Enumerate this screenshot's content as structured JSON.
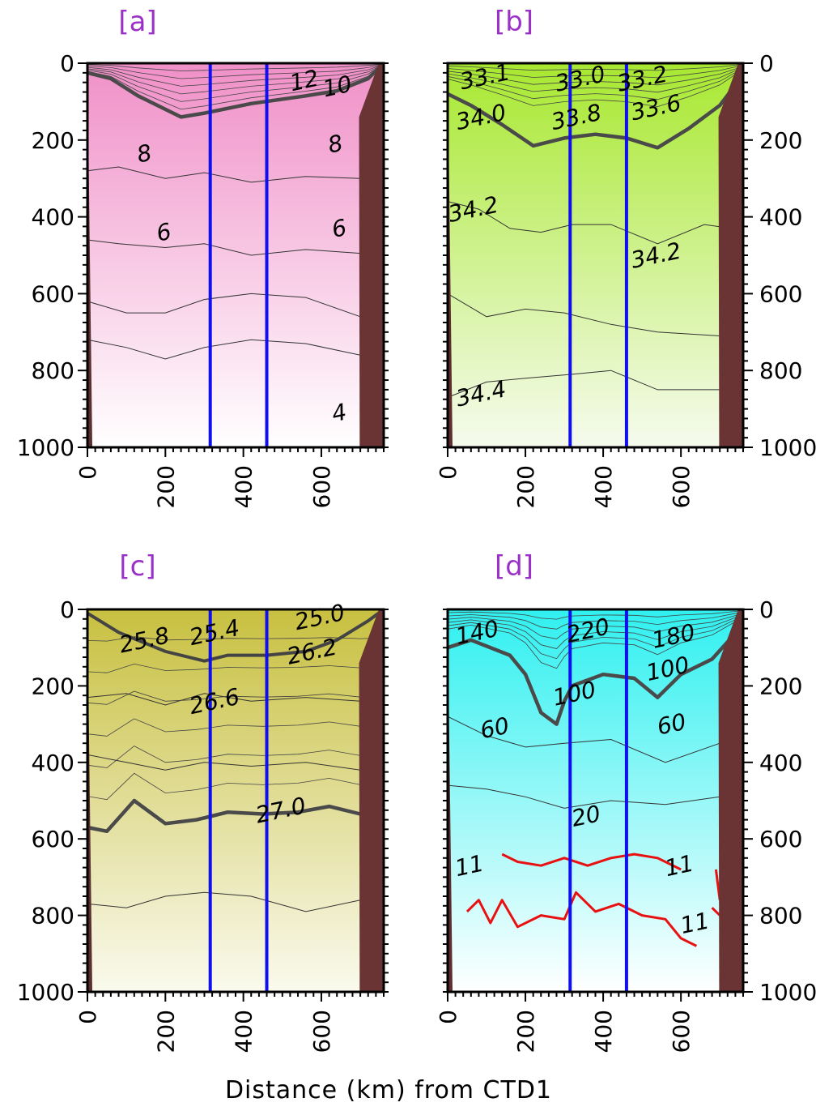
{
  "figure": {
    "xlabel": "Distance (km) from CTD1"
  },
  "chart_data": [
    {
      "type": "heatmap",
      "panel_label": "[a]",
      "x_range_km": [
        0,
        760
      ],
      "y_range_m": [
        0,
        1000
      ],
      "y_inverted": true,
      "yticks": [
        "0",
        "200",
        "400",
        "600",
        "800",
        "1000"
      ],
      "xticks": [
        "0",
        "200",
        "400",
        "600"
      ],
      "tick_side": "left",
      "colormap": {
        "top": "#f090c8",
        "bottom": "#ffffff"
      },
      "boundary_lines_km": [
        315,
        460
      ],
      "boundary_color": "#1010ee",
      "contour_levels": [
        "12",
        "10",
        "8",
        "8",
        "6",
        "6",
        "4"
      ],
      "contour_labels": [
        {
          "text": "12",
          "x": 560,
          "y": 65
        },
        {
          "text": "10",
          "x": 645,
          "y": 80
        },
        {
          "text": "8",
          "x": 150,
          "y": 255
        },
        {
          "text": "8",
          "x": 640,
          "y": 230
        },
        {
          "text": "6",
          "x": 200,
          "y": 460
        },
        {
          "text": "6",
          "x": 650,
          "y": 450
        },
        {
          "text": "4",
          "x": 650,
          "y": 930
        }
      ],
      "thick_contour": {
        "value": "10",
        "points": [
          [
            0,
            25
          ],
          [
            60,
            40
          ],
          [
            130,
            85
          ],
          [
            240,
            140
          ],
          [
            300,
            130
          ],
          [
            420,
            105
          ],
          [
            560,
            85
          ],
          [
            640,
            72
          ],
          [
            720,
            40
          ],
          [
            760,
            0
          ]
        ]
      },
      "thin_contours": [
        [
          [
            0,
            280
          ],
          [
            80,
            270
          ],
          [
            200,
            300
          ],
          [
            300,
            285
          ],
          [
            420,
            310
          ],
          [
            560,
            295
          ],
          [
            700,
            300
          ]
        ],
        [
          [
            0,
            460
          ],
          [
            80,
            470
          ],
          [
            200,
            480
          ],
          [
            300,
            470
          ],
          [
            420,
            500
          ],
          [
            560,
            485
          ],
          [
            700,
            495
          ]
        ],
        [
          [
            0,
            620
          ],
          [
            100,
            650
          ],
          [
            200,
            650
          ],
          [
            300,
            615
          ],
          [
            420,
            600
          ],
          [
            560,
            610
          ],
          [
            700,
            660
          ]
        ],
        [
          [
            0,
            720
          ],
          [
            100,
            740
          ],
          [
            200,
            770
          ],
          [
            300,
            740
          ],
          [
            420,
            720
          ],
          [
            560,
            730
          ],
          [
            700,
            760
          ]
        ]
      ],
      "seafloor": {
        "left_width_km": 8,
        "right_top_km": [
          705,
          0
        ],
        "right_bottom_km": 715
      }
    },
    {
      "type": "heatmap",
      "panel_label": "[b]",
      "x_range_km": [
        0,
        760
      ],
      "y_range_m": [
        0,
        1000
      ],
      "y_inverted": true,
      "yticks": [
        "0",
        "200",
        "400",
        "600",
        "800",
        "1000"
      ],
      "xticks": [
        "0",
        "200",
        "400",
        "600"
      ],
      "tick_side": "right",
      "colormap": {
        "top": "#a8e830",
        "bottom": "#f6fbee"
      },
      "boundary_lines_km": [
        315,
        460
      ],
      "boundary_color": "#1010ee",
      "contour_levels": [
        "33.1",
        "33.0",
        "33.2",
        "34.0",
        "33.8",
        "33.6",
        "34.2",
        "34.2",
        "34.4"
      ],
      "contour_labels": [
        {
          "text": "33.1",
          "x": 100,
          "y": 55
        },
        {
          "text": "33.0",
          "x": 345,
          "y": 60
        },
        {
          "text": "33.2",
          "x": 505,
          "y": 60
        },
        {
          "text": "34.0",
          "x": 90,
          "y": 160
        },
        {
          "text": "33.8",
          "x": 335,
          "y": 160
        },
        {
          "text": "33.6",
          "x": 540,
          "y": 135
        },
        {
          "text": "34.2",
          "x": 70,
          "y": 400
        },
        {
          "text": "34.2",
          "x": 540,
          "y": 520
        },
        {
          "text": "34.4",
          "x": 90,
          "y": 880
        }
      ],
      "thick_contour": {
        "value": "34.0",
        "points": [
          [
            0,
            80
          ],
          [
            60,
            110
          ],
          [
            140,
            160
          ],
          [
            220,
            215
          ],
          [
            300,
            195
          ],
          [
            380,
            185
          ],
          [
            460,
            195
          ],
          [
            540,
            220
          ],
          [
            620,
            170
          ],
          [
            700,
            110
          ],
          [
            760,
            30
          ]
        ]
      },
      "thin_contours": [
        [
          [
            0,
            360
          ],
          [
            80,
            380
          ],
          [
            160,
            430
          ],
          [
            240,
            440
          ],
          [
            320,
            420
          ],
          [
            420,
            420
          ],
          [
            540,
            470
          ],
          [
            660,
            420
          ],
          [
            730,
            430
          ]
        ],
        [
          [
            0,
            600
          ],
          [
            100,
            660
          ],
          [
            200,
            640
          ],
          [
            300,
            650
          ],
          [
            420,
            680
          ],
          [
            540,
            700
          ],
          [
            700,
            710
          ]
        ],
        [
          [
            0,
            870
          ],
          [
            100,
            830
          ],
          [
            200,
            820
          ],
          [
            320,
            810
          ],
          [
            420,
            800
          ],
          [
            540,
            850
          ],
          [
            700,
            850
          ]
        ]
      ],
      "seafloor": {
        "left_width_km": 8,
        "right_top_km": [
          705,
          0
        ],
        "right_bottom_km": 715
      }
    },
    {
      "type": "heatmap",
      "panel_label": "[c]",
      "x_range_km": [
        0,
        760
      ],
      "y_range_m": [
        0,
        1000
      ],
      "y_inverted": true,
      "yticks": [
        "0",
        "200",
        "400",
        "600",
        "800",
        "1000"
      ],
      "xticks": [
        "0",
        "200",
        "400",
        "600"
      ],
      "tick_side": "left",
      "colormap": {
        "top": "#c8c040",
        "bottom": "#fafaee"
      },
      "boundary_lines_km": [
        315,
        460
      ],
      "boundary_color": "#1010ee",
      "contour_levels": [
        "25.0",
        "25.4",
        "25.8",
        "26.2",
        "26.6",
        "27.0"
      ],
      "contour_labels": [
        {
          "text": "25.0",
          "x": 600,
          "y": 40
        },
        {
          "text": "25.4",
          "x": 330,
          "y": 80
        },
        {
          "text": "25.8",
          "x": 150,
          "y": 100
        },
        {
          "text": "26.2",
          "x": 580,
          "y": 130
        },
        {
          "text": "26.6",
          "x": 330,
          "y": 260
        },
        {
          "text": "27.0",
          "x": 500,
          "y": 545
        }
      ],
      "thick_contour": {
        "value": "27.0",
        "points": [
          [
            0,
            570
          ],
          [
            50,
            580
          ],
          [
            120,
            500
          ],
          [
            200,
            560
          ],
          [
            280,
            550
          ],
          [
            360,
            530
          ],
          [
            450,
            535
          ],
          [
            540,
            530
          ],
          [
            620,
            515
          ],
          [
            700,
            535
          ],
          [
            760,
            520
          ]
        ]
      },
      "thick_contour_upper": [
        [
          0,
          10
        ],
        [
          80,
          60
        ],
        [
          200,
          110
        ],
        [
          300,
          135
        ],
        [
          360,
          120
        ],
        [
          460,
          120
        ],
        [
          560,
          110
        ],
        [
          640,
          80
        ],
        [
          720,
          30
        ],
        [
          760,
          0
        ]
      ],
      "thin_contours": [
        [
          [
            0,
            230
          ],
          [
            100,
            220
          ],
          [
            200,
            250
          ],
          [
            300,
            220
          ],
          [
            420,
            240
          ],
          [
            560,
            230
          ],
          [
            700,
            240
          ]
        ],
        [
          [
            0,
            380
          ],
          [
            100,
            400
          ],
          [
            200,
            420
          ],
          [
            300,
            400
          ],
          [
            420,
            410
          ],
          [
            560,
            400
          ],
          [
            700,
            420
          ]
        ],
        [
          [
            0,
            770
          ],
          [
            100,
            780
          ],
          [
            200,
            750
          ],
          [
            300,
            740
          ],
          [
            420,
            750
          ],
          [
            560,
            790
          ],
          [
            700,
            760
          ]
        ]
      ],
      "seafloor": {
        "left_width_km": 8,
        "right_top_km": [
          705,
          0
        ],
        "right_bottom_km": 715
      }
    },
    {
      "type": "heatmap",
      "panel_label": "[d]",
      "x_range_km": [
        0,
        760
      ],
      "y_range_m": [
        0,
        1000
      ],
      "y_inverted": true,
      "yticks": [
        "0",
        "200",
        "400",
        "600",
        "800",
        "1000"
      ],
      "xticks": [
        "0",
        "200",
        "400",
        "600"
      ],
      "tick_side": "right",
      "colormap": {
        "top": "#30f0f0",
        "bottom": "#ffffff"
      },
      "boundary_lines_km": [
        315,
        460
      ],
      "boundary_color": "#1010ee",
      "contour_levels": [
        "140",
        "220",
        "180",
        "100",
        "100",
        "60",
        "60",
        "20",
        "11",
        "11",
        "11"
      ],
      "contour_labels": [
        {
          "text": "140",
          "x": 80,
          "y": 80
        },
        {
          "text": "220",
          "x": 365,
          "y": 75
        },
        {
          "text": "180",
          "x": 585,
          "y": 90
        },
        {
          "text": "100",
          "x": 570,
          "y": 175
        },
        {
          "text": "100",
          "x": 330,
          "y": 240
        },
        {
          "text": "60",
          "x": 125,
          "y": 330
        },
        {
          "text": "60",
          "x": 580,
          "y": 320
        },
        {
          "text": "20",
          "x": 360,
          "y": 560
        },
        {
          "text": "11",
          "x": 60,
          "y": 690
        },
        {
          "text": "11",
          "x": 600,
          "y": 690
        },
        {
          "text": "11",
          "x": 640,
          "y": 840
        }
      ],
      "thick_contour": {
        "value": "100",
        "points": [
          [
            0,
            100
          ],
          [
            60,
            80
          ],
          [
            160,
            120
          ],
          [
            200,
            170
          ],
          [
            240,
            270
          ],
          [
            280,
            300
          ],
          [
            300,
            240
          ],
          [
            320,
            200
          ],
          [
            400,
            170
          ],
          [
            480,
            180
          ],
          [
            540,
            230
          ],
          [
            600,
            170
          ],
          [
            680,
            130
          ],
          [
            760,
            40
          ]
        ]
      },
      "red_contours": [
        [
          [
            140,
            640
          ],
          [
            180,
            660
          ],
          [
            240,
            670
          ],
          [
            300,
            650
          ],
          [
            360,
            670
          ],
          [
            420,
            650
          ],
          [
            480,
            640
          ],
          [
            540,
            650
          ],
          [
            600,
            680
          ]
        ],
        [
          [
            50,
            790
          ],
          [
            80,
            760
          ],
          [
            110,
            820
          ],
          [
            140,
            760
          ],
          [
            180,
            830
          ],
          [
            240,
            800
          ],
          [
            300,
            810
          ],
          [
            330,
            740
          ],
          [
            380,
            790
          ],
          [
            440,
            770
          ],
          [
            500,
            800
          ],
          [
            560,
            810
          ],
          [
            600,
            860
          ],
          [
            640,
            880
          ]
        ],
        [
          [
            690,
            680
          ],
          [
            700,
            760
          ]
        ],
        [
          [
            680,
            780
          ],
          [
            700,
            800
          ]
        ]
      ],
      "thin_contours": [
        [
          [
            0,
            280
          ],
          [
            100,
            330
          ],
          [
            200,
            360
          ],
          [
            300,
            350
          ],
          [
            420,
            340
          ],
          [
            560,
            400
          ],
          [
            700,
            350
          ]
        ],
        [
          [
            0,
            460
          ],
          [
            100,
            470
          ],
          [
            200,
            490
          ],
          [
            300,
            520
          ],
          [
            420,
            500
          ],
          [
            560,
            510
          ],
          [
            700,
            490
          ]
        ]
      ],
      "red_color": "#e81010",
      "seafloor": {
        "left_width_km": 8,
        "right_top_km": [
          705,
          0
        ],
        "right_bottom_km": 715
      }
    }
  ]
}
